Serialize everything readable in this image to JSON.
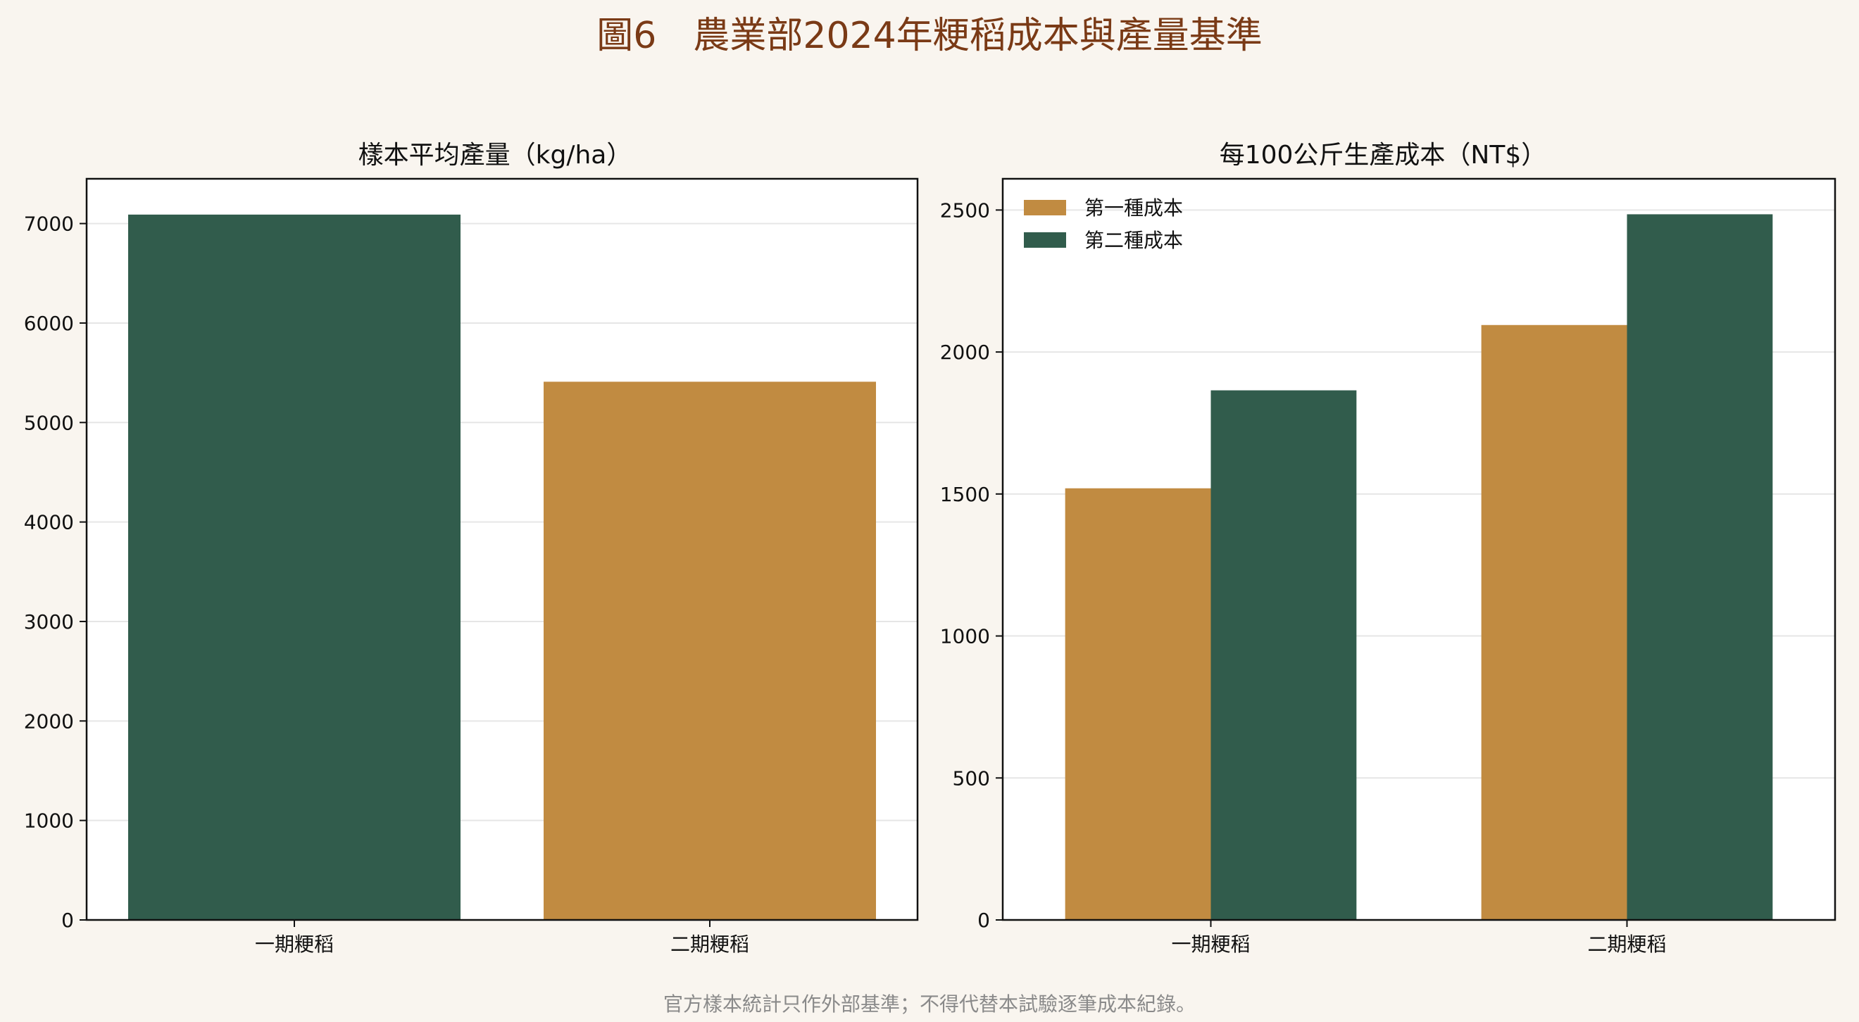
{
  "figure": {
    "title": "圖6　農業部2024年粳稻成本與產量基準",
    "footnote": "官方樣本統計只作外部基準；不得代替本試驗逐筆成本紀錄。"
  },
  "colors": {
    "green": "#315c4c",
    "gold": "#c18b41",
    "title": "#7a3a16",
    "background": "#f9f5ef",
    "plot_background": "#ffffff"
  },
  "chart_data": [
    {
      "type": "bar",
      "title": "樣本平均產量（kg/ha）",
      "xlabel": "",
      "ylabel": "",
      "categories": [
        "一期粳稻",
        "二期粳稻"
      ],
      "values": [
        7090,
        5410
      ],
      "bar_colors": [
        "#315c4c",
        "#c18b41"
      ],
      "ylim": [
        0,
        7450
      ],
      "yticks": [
        0,
        1000,
        2000,
        3000,
        4000,
        5000,
        6000,
        7000
      ],
      "grid": true,
      "legend": null
    },
    {
      "type": "bar",
      "title": "每100公斤生產成本（NT$）",
      "xlabel": "",
      "ylabel": "",
      "categories": [
        "一期粳稻",
        "二期粳稻"
      ],
      "series": [
        {
          "name": "第一種成本",
          "color": "#c18b41",
          "values": [
            1520,
            2095
          ]
        },
        {
          "name": "第二種成本",
          "color": "#315c4c",
          "values": [
            1865,
            2485
          ]
        }
      ],
      "ylim": [
        0,
        2610
      ],
      "yticks": [
        0,
        500,
        1000,
        1500,
        2000,
        2500
      ],
      "grid": true,
      "legend": "top-left"
    }
  ]
}
